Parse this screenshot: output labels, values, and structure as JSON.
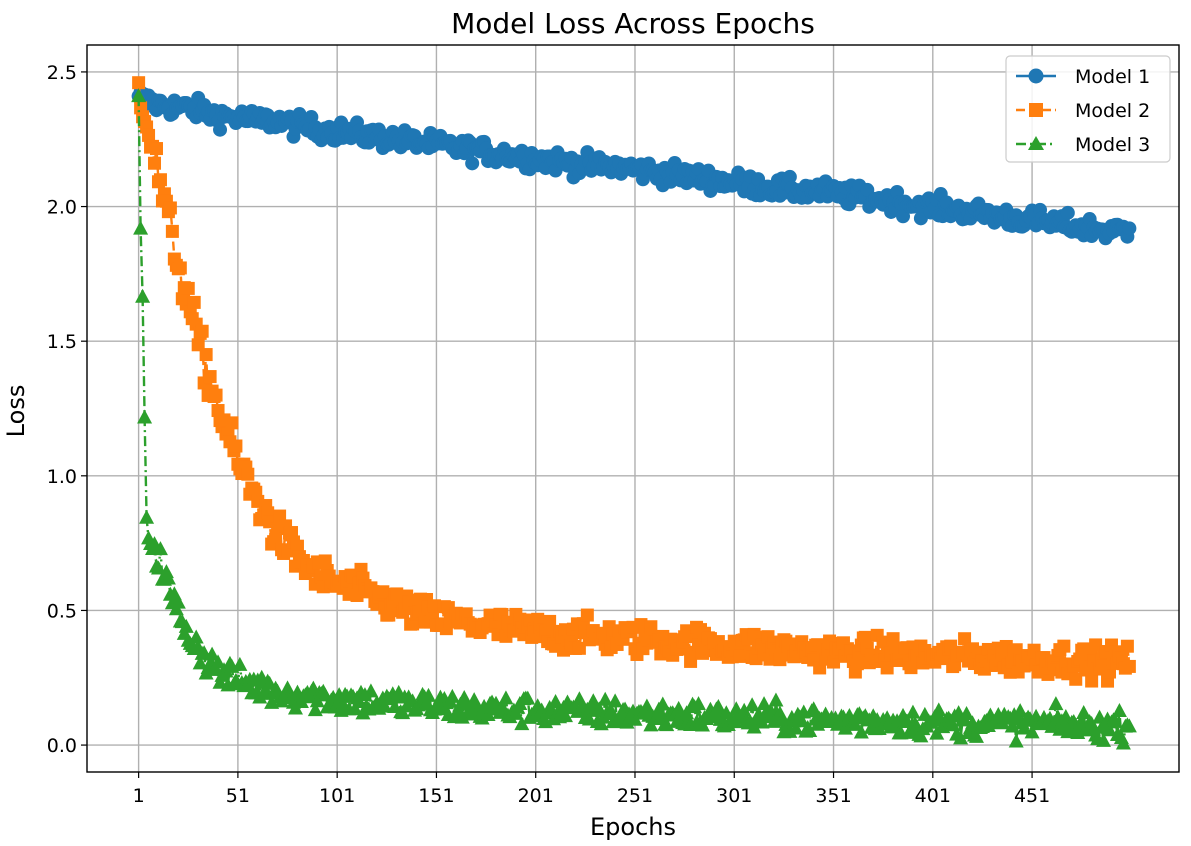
{
  "chart_data": {
    "type": "line",
    "title": "Model Loss Across Epochs",
    "xlabel": "Epochs",
    "ylabel": "Loss",
    "xlim": [
      -25,
      525
    ],
    "ylim": [
      -0.1,
      2.6
    ],
    "xticks": [
      1,
      51,
      101,
      151,
      201,
      251,
      301,
      351,
      401,
      451
    ],
    "yticks": [
      0.0,
      0.5,
      1.0,
      1.5,
      2.0,
      2.5
    ],
    "ytick_labels": [
      "0.0",
      "0.5",
      "1.0",
      "1.5",
      "2.0",
      "2.5"
    ],
    "grid": true,
    "legend": "top-right",
    "epochs": [
      1,
      500
    ],
    "series": [
      {
        "name": "Model 1",
        "color": "#1f77b4",
        "marker": "circle",
        "linestyle": "solid",
        "x": [
          1,
          5,
          10,
          20,
          30,
          40,
          50,
          60,
          70,
          80,
          90,
          100,
          110,
          120,
          130,
          140,
          150,
          160,
          170,
          180,
          190,
          200,
          210,
          220,
          230,
          240,
          250,
          260,
          270,
          280,
          290,
          300,
          310,
          320,
          330,
          340,
          350,
          360,
          370,
          380,
          390,
          400,
          410,
          420,
          430,
          440,
          450,
          460,
          470,
          480,
          490,
          500
        ],
        "values": [
          2.41,
          2.39,
          2.38,
          2.37,
          2.36,
          2.34,
          2.33,
          2.32,
          2.32,
          2.3,
          2.29,
          2.28,
          2.27,
          2.26,
          2.25,
          2.24,
          2.23,
          2.22,
          2.21,
          2.2,
          2.19,
          2.18,
          2.17,
          2.16,
          2.15,
          2.15,
          2.14,
          2.13,
          2.12,
          2.11,
          2.1,
          2.09,
          2.08,
          2.07,
          2.06,
          2.06,
          2.05,
          2.04,
          2.03,
          2.02,
          2.01,
          2.0,
          1.99,
          1.98,
          1.97,
          1.96,
          1.95,
          1.94,
          1.93,
          1.92,
          1.91,
          1.91
        ],
        "noise": 0.02
      },
      {
        "name": "Model 2",
        "color": "#ff7f0e",
        "marker": "square",
        "linestyle": "dashed",
        "x": [
          1,
          5,
          10,
          15,
          20,
          25,
          30,
          35,
          40,
          45,
          50,
          55,
          60,
          65,
          70,
          75,
          80,
          85,
          90,
          95,
          100,
          110,
          120,
          130,
          140,
          150,
          160,
          170,
          180,
          190,
          200,
          220,
          240,
          260,
          280,
          300,
          320,
          340,
          360,
          380,
          400,
          420,
          440,
          460,
          480,
          500
        ],
        "values": [
          2.46,
          2.33,
          2.15,
          1.98,
          1.82,
          1.67,
          1.53,
          1.4,
          1.28,
          1.17,
          1.07,
          0.99,
          0.92,
          0.85,
          0.79,
          0.75,
          0.71,
          0.67,
          0.64,
          0.62,
          0.6,
          0.58,
          0.55,
          0.52,
          0.49,
          0.47,
          0.46,
          0.45,
          0.44,
          0.43,
          0.42,
          0.41,
          0.4,
          0.39,
          0.38,
          0.37,
          0.36,
          0.35,
          0.34,
          0.34,
          0.33,
          0.33,
          0.32,
          0.32,
          0.31,
          0.31
        ],
        "noise": 0.04
      },
      {
        "name": "Model 3",
        "color": "#2ca02c",
        "marker": "triangle",
        "linestyle": "dashdot",
        "x": [
          1,
          2,
          3,
          4,
          5,
          6,
          8,
          10,
          12,
          15,
          20,
          25,
          30,
          35,
          40,
          45,
          50,
          60,
          70,
          80,
          90,
          100,
          120,
          140,
          160,
          180,
          200,
          220,
          240,
          260,
          280,
          300,
          320,
          340,
          360,
          380,
          400,
          420,
          440,
          460,
          480,
          500
        ],
        "values": [
          2.41,
          1.95,
          1.61,
          1.15,
          0.82,
          0.8,
          0.76,
          0.72,
          0.68,
          0.6,
          0.5,
          0.43,
          0.37,
          0.32,
          0.28,
          0.26,
          0.24,
          0.22,
          0.2,
          0.19,
          0.18,
          0.17,
          0.16,
          0.15,
          0.14,
          0.13,
          0.13,
          0.12,
          0.12,
          0.11,
          0.11,
          0.1,
          0.1,
          0.09,
          0.09,
          0.09,
          0.08,
          0.08,
          0.08,
          0.08,
          0.07,
          0.07
        ],
        "noise": 0.04
      }
    ]
  }
}
